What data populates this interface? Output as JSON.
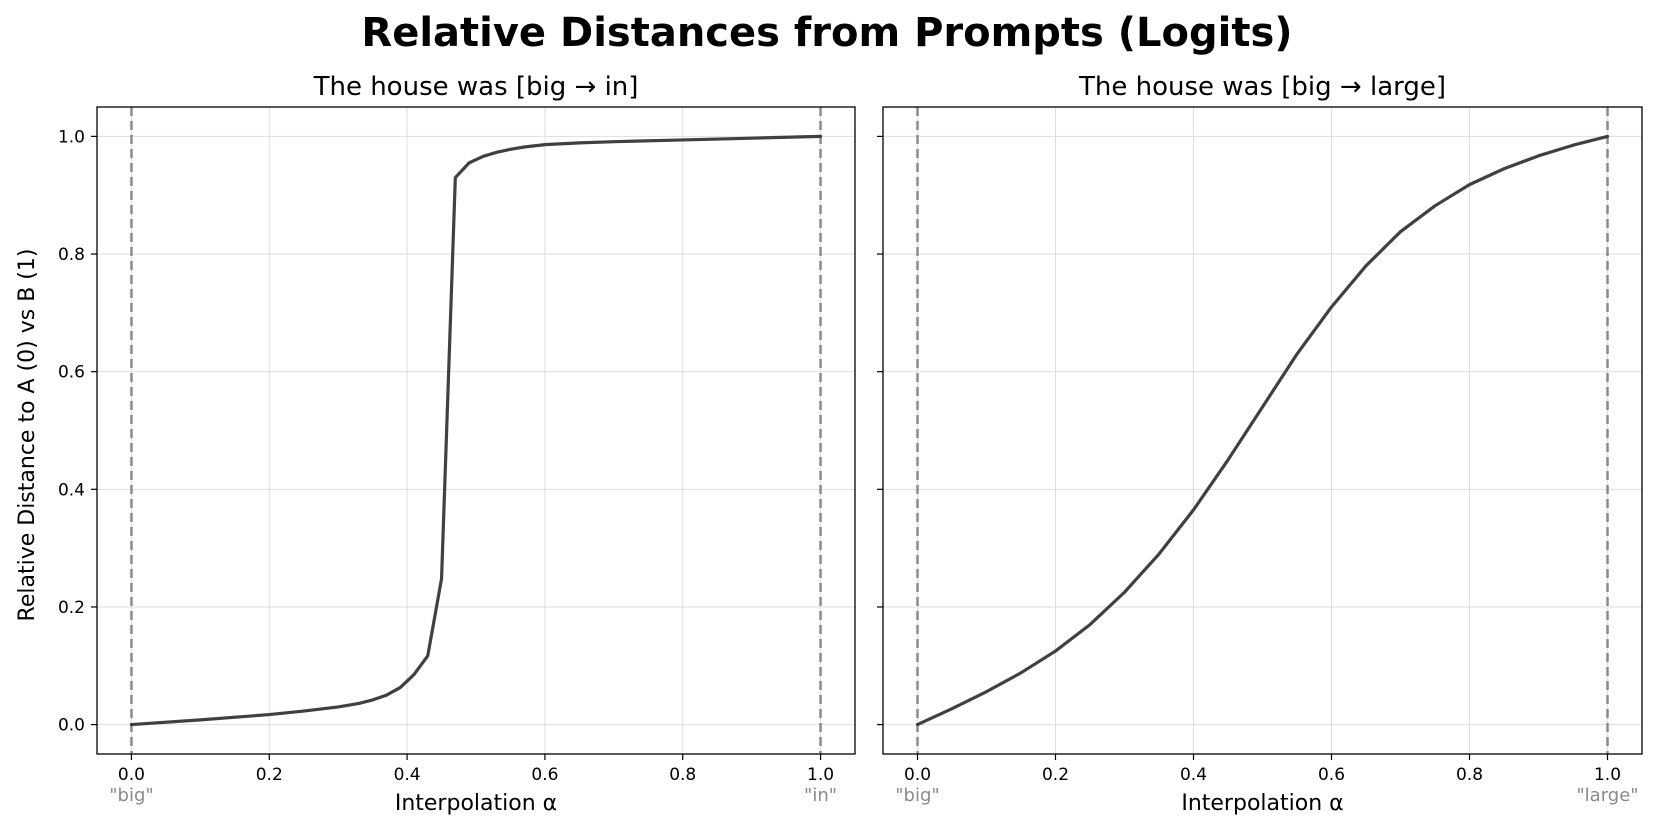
{
  "figure": {
    "title": "Relative Distances from Prompts (Logits)",
    "ylabel": "Relative Distance to A (0) vs B (1)"
  },
  "chart_data": [
    {
      "type": "line",
      "title": "The house was [big → in]",
      "xlabel": "Interpolation α",
      "ylabel": "Relative Distance to A (0) vs B (1)",
      "xlim": [
        -0.05,
        1.05
      ],
      "ylim": [
        -0.05,
        1.05
      ],
      "xticks": [
        0.0,
        0.2,
        0.4,
        0.6,
        0.8,
        1.0
      ],
      "xtick_labels": [
        "0.0",
        "0.2",
        "0.4",
        "0.6",
        "0.8",
        "1.0"
      ],
      "yticks": [
        0.0,
        0.2,
        0.4,
        0.6,
        0.8,
        1.0
      ],
      "ytick_labels": [
        "0.0",
        "0.2",
        "0.4",
        "0.6",
        "0.8",
        "1.0"
      ],
      "grid": true,
      "color": "#404040",
      "reference_lines": [
        {
          "x": 0.0,
          "label": "\"big\"",
          "color": "#8c8c8c",
          "style": "dashed"
        },
        {
          "x": 1.0,
          "label": "\"in\"",
          "color": "#8c8c8c",
          "style": "dashed"
        }
      ],
      "x": [
        0.0,
        0.1,
        0.2,
        0.25,
        0.3,
        0.33,
        0.35,
        0.37,
        0.39,
        0.41,
        0.43,
        0.45,
        0.47,
        0.49,
        0.51,
        0.53,
        0.55,
        0.57,
        0.6,
        0.65,
        0.7,
        0.8,
        0.9,
        1.0
      ],
      "y": [
        0.0,
        0.008,
        0.017,
        0.023,
        0.03,
        0.036,
        0.042,
        0.05,
        0.063,
        0.085,
        0.117,
        0.248,
        0.93,
        0.955,
        0.966,
        0.973,
        0.978,
        0.982,
        0.986,
        0.989,
        0.991,
        0.994,
        0.997,
        1.0
      ]
    },
    {
      "type": "line",
      "title": "The house was [big → large]",
      "xlabel": "Interpolation α",
      "xlim": [
        -0.05,
        1.05
      ],
      "ylim": [
        -0.05,
        1.05
      ],
      "xticks": [
        0.0,
        0.2,
        0.4,
        0.6,
        0.8,
        1.0
      ],
      "xtick_labels": [
        "0.0",
        "0.2",
        "0.4",
        "0.6",
        "0.8",
        "1.0"
      ],
      "yticks": [
        0.0,
        0.2,
        0.4,
        0.6,
        0.8,
        1.0
      ],
      "grid": true,
      "shared_y": true,
      "color": "#404040",
      "reference_lines": [
        {
          "x": 0.0,
          "label": "\"big\"",
          "color": "#8c8c8c",
          "style": "dashed"
        },
        {
          "x": 1.0,
          "label": "\"large\"",
          "color": "#8c8c8c",
          "style": "dashed"
        }
      ],
      "x": [
        0.0,
        0.05,
        0.1,
        0.15,
        0.2,
        0.25,
        0.3,
        0.35,
        0.4,
        0.45,
        0.5,
        0.55,
        0.6,
        0.65,
        0.7,
        0.75,
        0.8,
        0.85,
        0.9,
        0.95,
        1.0
      ],
      "y": [
        0.0,
        0.027,
        0.056,
        0.088,
        0.125,
        0.17,
        0.225,
        0.29,
        0.365,
        0.45,
        0.54,
        0.63,
        0.71,
        0.78,
        0.838,
        0.882,
        0.918,
        0.945,
        0.967,
        0.985,
        1.0
      ]
    }
  ]
}
